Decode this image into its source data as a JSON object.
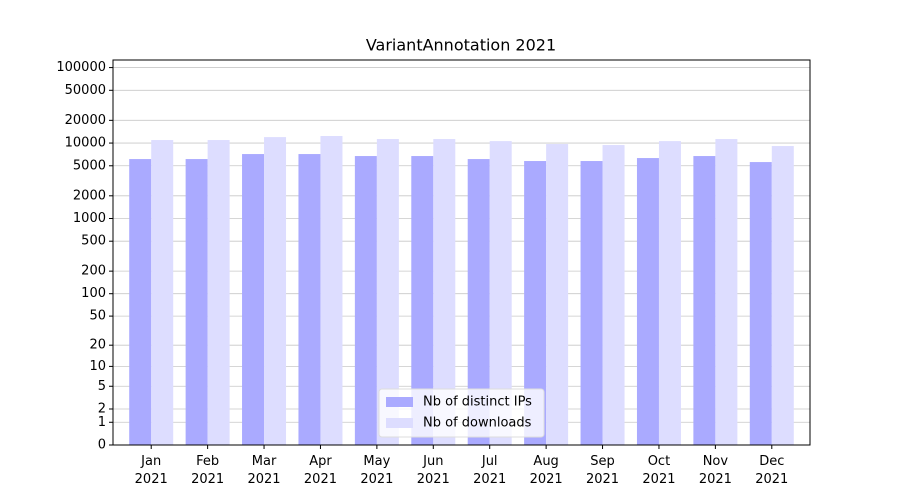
{
  "chart_data": {
    "type": "bar",
    "title": "VariantAnnotation 2021",
    "categories": [
      "Jan 2021",
      "Feb 2021",
      "Mar 2021",
      "Apr 2021",
      "May 2021",
      "Jun 2021",
      "Jul 2021",
      "Aug 2021",
      "Sep 2021",
      "Oct 2021",
      "Nov 2021",
      "Dec 2021"
    ],
    "series": [
      {
        "name": "Nb of distinct IPs",
        "color": "#aaaaff",
        "values": [
          6140,
          6140,
          7150,
          7150,
          6730,
          6730,
          6140,
          5780,
          5780,
          6330,
          6730,
          5600
        ]
      },
      {
        "name": "Nb of downloads",
        "color": "#ddddff",
        "values": [
          10960,
          10960,
          12000,
          12400,
          11300,
          11300,
          10620,
          9700,
          9410,
          10620,
          11300,
          9130
        ]
      }
    ],
    "yscale": "log1p",
    "ylim": [
      0,
      126000
    ],
    "yticks": [
      0,
      1,
      2,
      5,
      10,
      20,
      50,
      100,
      200,
      500,
      1000,
      2000,
      5000,
      10000,
      20000,
      50000,
      100000
    ],
    "grid": true,
    "legend": "lower center"
  }
}
